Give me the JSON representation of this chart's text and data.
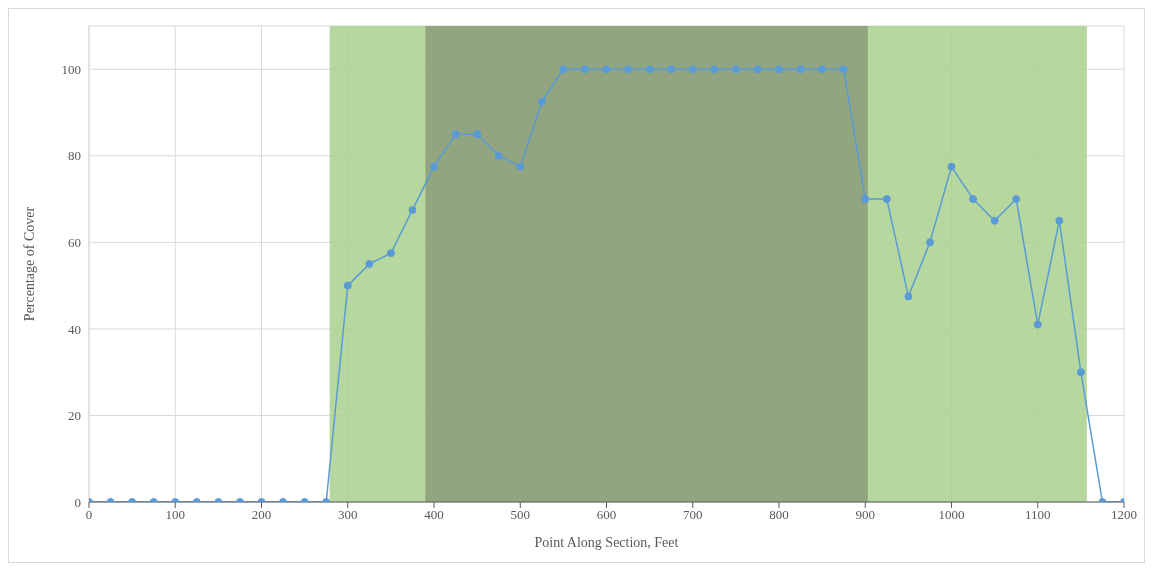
{
  "chart_data": {
    "type": "line",
    "xlabel": "Point Along Section, Feet",
    "ylabel": "Percentage of Cover",
    "x": [
      0,
      25,
      50,
      75,
      100,
      125,
      150,
      175,
      200,
      225,
      250,
      275,
      300,
      325,
      350,
      375,
      400,
      425,
      450,
      475,
      500,
      525,
      550,
      575,
      600,
      625,
      650,
      675,
      700,
      725,
      750,
      775,
      800,
      825,
      850,
      875,
      900,
      925,
      950,
      975,
      1000,
      1025,
      1050,
      1075,
      1100,
      1125,
      1150,
      1175,
      1200
    ],
    "series": [
      {
        "color": "#5b9bd5",
        "values": [
          0,
          0,
          0,
          0,
          0,
          0,
          0,
          0,
          0,
          0,
          0,
          0,
          50,
          55,
          57.5,
          67.5,
          77.5,
          85,
          85,
          80,
          77.5,
          92.5,
          100,
          100,
          100,
          100,
          100,
          100,
          100,
          100,
          100,
          100,
          100,
          100,
          100,
          100,
          70,
          70,
          47.5,
          60,
          77.5,
          70,
          65,
          70,
          41,
          65,
          30,
          0,
          0
        ]
      }
    ],
    "xlim": [
      0,
      1200
    ],
    "xticks": [
      0,
      100,
      200,
      300,
      400,
      500,
      600,
      700,
      800,
      900,
      1000,
      1100,
      1200
    ],
    "ylim": [
      0,
      110
    ],
    "yticks": [
      0,
      20,
      40,
      60,
      80,
      100
    ],
    "bands": [
      {
        "axis": "x",
        "from": 279,
        "to": 1157,
        "color": "#a9d18e"
      },
      {
        "axis": "x",
        "from": 390,
        "to": 903,
        "color": "#8c9c7b"
      }
    ],
    "grid": true,
    "marker": "circle",
    "line_style": "solid"
  }
}
